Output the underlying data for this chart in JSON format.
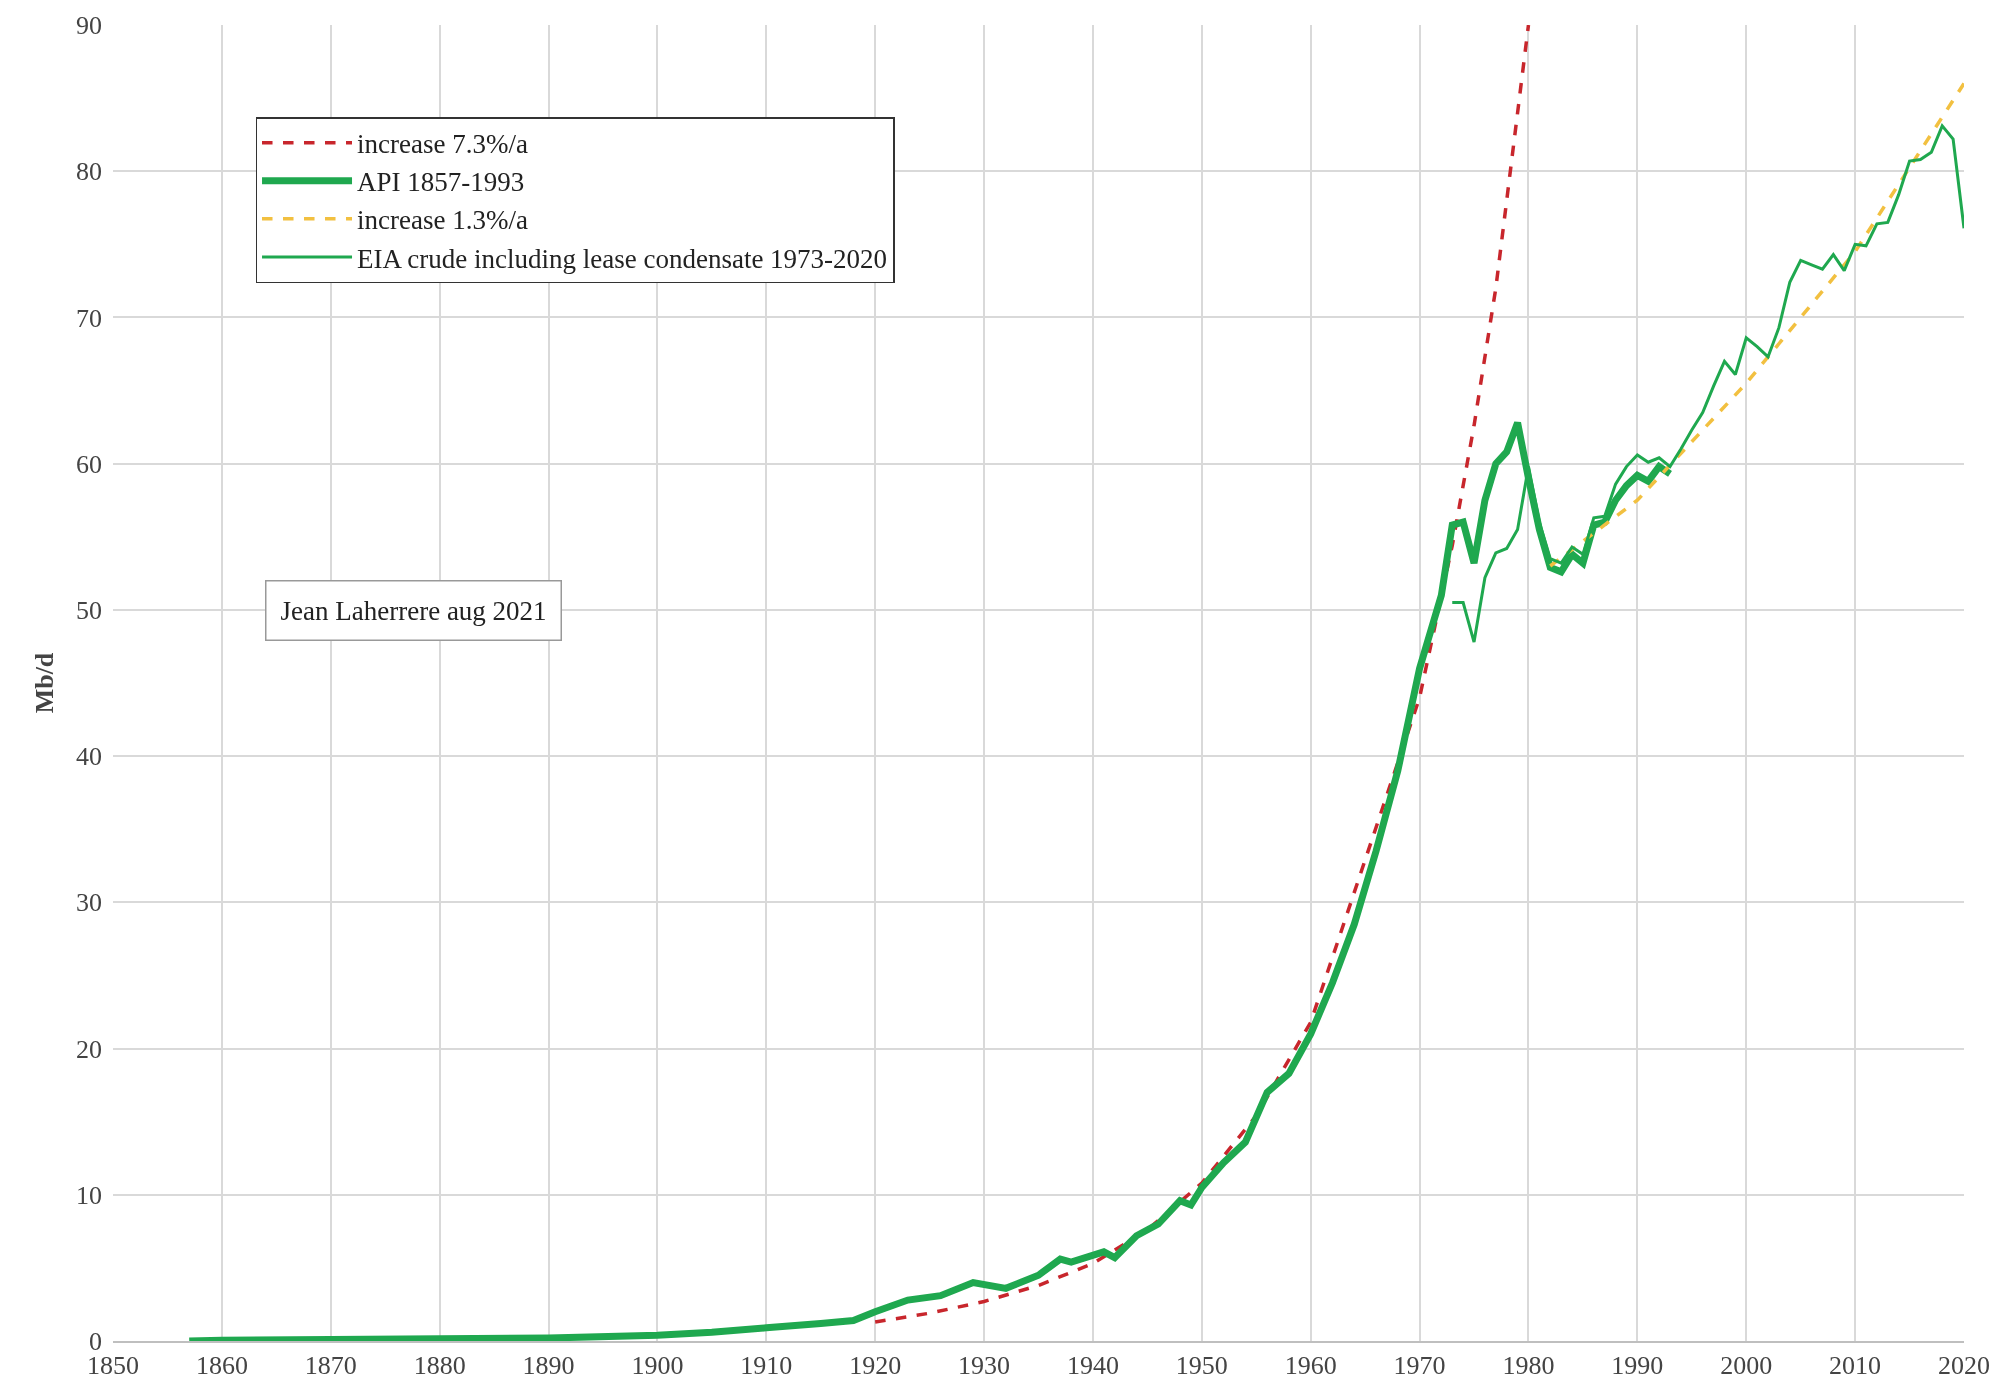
{
  "chart_data": {
    "type": "line",
    "ylabel": "Mb/d",
    "xlim": [
      1850,
      2020
    ],
    "xticks": [
      1850,
      1860,
      1870,
      1880,
      1890,
      1900,
      1910,
      1920,
      1930,
      1940,
      1950,
      1960,
      1970,
      1980,
      1990,
      2000,
      2010,
      2020
    ],
    "ylim": [
      0,
      90
    ],
    "yticks": [
      0,
      10,
      20,
      30,
      40,
      50,
      60,
      70,
      80,
      90
    ],
    "grid": true,
    "legend": "top left",
    "annotations": [
      "Jean Laherrere aug 2021"
    ],
    "series": [
      {
        "name": "increase 7.3%/a",
        "color": "#c8262c",
        "line_style": "dashed",
        "x": [
          1920,
          1925,
          1930,
          1935,
          1940,
          1945,
          1950,
          1955,
          1960,
          1970,
          1973,
          1975,
          1977,
          1980
        ],
        "values": [
          1.3,
          1.9,
          2.7,
          3.8,
          5.3,
          7.6,
          10.8,
          15.4,
          21.8,
          44,
          54.4,
          62.6,
          72,
          90
        ]
      },
      {
        "name": "API 1857-1993",
        "color": "#1fa84f",
        "line_style": "solid",
        "x": [
          1857,
          1860,
          1870,
          1880,
          1890,
          1900,
          1905,
          1910,
          1915,
          1918,
          1920,
          1923,
          1926,
          1929,
          1932,
          1935,
          1937,
          1938,
          1941,
          1942,
          1944,
          1946,
          1948,
          1949,
          1950,
          1952,
          1954,
          1956,
          1958,
          1960,
          1962,
          1964,
          1966,
          1968,
          1970,
          1972,
          1973,
          1974,
          1975,
          1976,
          1977,
          1978,
          1979,
          1980,
          1981,
          1982,
          1983,
          1984,
          1985,
          1986,
          1987,
          1988,
          1989,
          1990,
          1991,
          1992,
          1993
        ],
        "values": [
          0,
          0.05,
          0.1,
          0.15,
          0.2,
          0.4,
          0.6,
          0.9,
          1.2,
          1.4,
          2,
          2.8,
          3.1,
          4,
          3.6,
          4.5,
          5.6,
          5.4,
          6.1,
          5.7,
          7.2,
          8,
          9.6,
          9.3,
          10.5,
          12.2,
          13.6,
          17,
          18.3,
          21,
          24.5,
          28.5,
          33.5,
          39,
          46,
          51,
          55.8,
          56,
          53.2,
          57.5,
          60,
          60.8,
          62.8,
          59,
          55.5,
          52.9,
          52.6,
          53.8,
          53.2,
          55.8,
          56,
          57.5,
          58.5,
          59.2,
          58.8,
          59.8,
          59.3
        ]
      },
      {
        "name": "increase 1.3%/a",
        "color": "#f2c040",
        "line_style": "dashed",
        "x": [
          1982,
          1990,
          2000,
          2010,
          2020
        ],
        "values": [
          53,
          57.5,
          65.5,
          74.5,
          86
        ]
      },
      {
        "name": "EIA crude including lease condensate 1973-2020",
        "color": "#1fa84f",
        "line_style": "solid",
        "x": [
          1973,
          1974,
          1975,
          1976,
          1977,
          1978,
          1979,
          1980,
          1981,
          1982,
          1983,
          1984,
          1985,
          1986,
          1987,
          1988,
          1989,
          1990,
          1991,
          1992,
          1993,
          1994,
          1995,
          1996,
          1997,
          1998,
          1999,
          2000,
          2001,
          2002,
          2003,
          2004,
          2005,
          2006,
          2007,
          2008,
          2009,
          2010,
          2011,
          2012,
          2013,
          2014,
          2015,
          2016,
          2017,
          2018,
          2019,
          2020
        ],
        "values": [
          50.5,
          50.5,
          47.8,
          52.2,
          53.9,
          54.2,
          55.5,
          59.8,
          56,
          53.5,
          53.2,
          54.3,
          53.8,
          56.3,
          56.4,
          58.6,
          59.8,
          60.6,
          60.1,
          60.4,
          59.8,
          61,
          62.3,
          63.5,
          65.3,
          67,
          66.1,
          68.6,
          68,
          67.3,
          69.3,
          72.4,
          73.9,
          73.6,
          73.3,
          74.3,
          73.2,
          75,
          74.9,
          76.4,
          76.5,
          78.4,
          80.7,
          80.8,
          81.3,
          83.1,
          82.2,
          76.1
        ]
      }
    ]
  }
}
